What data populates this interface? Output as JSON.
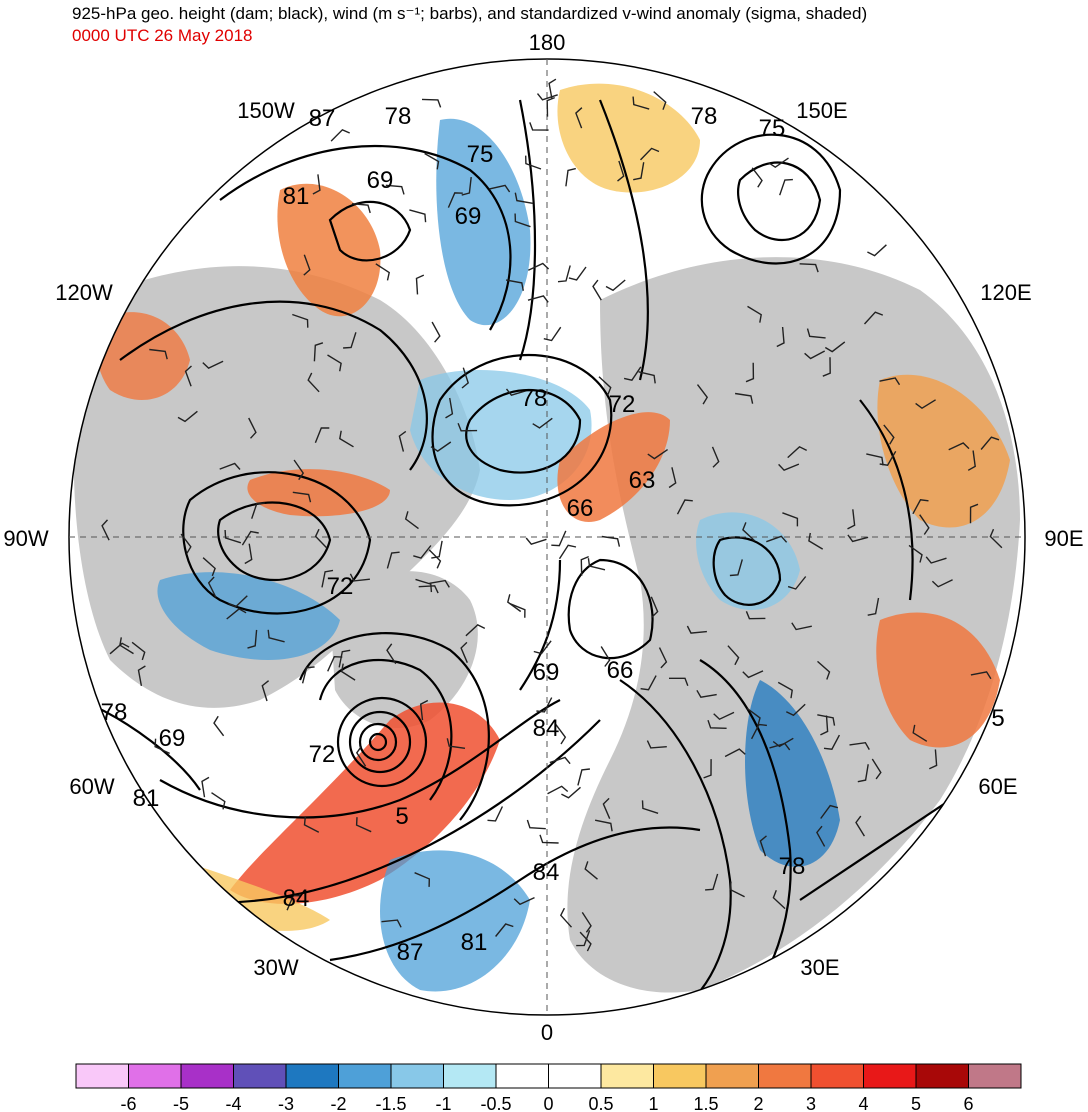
{
  "header": {
    "title": "925-hPa geo. height (dam; black), wind (m s⁻¹; barbs), and standardized v-wind anomaly (sigma, shaded)",
    "subtitle": "0000 UTC 26 May 2018"
  },
  "map": {
    "projection": "north polar stereographic",
    "longitude_labels": [
      {
        "text": "180",
        "pos": "top"
      },
      {
        "text": "150E",
        "pos": "top-right"
      },
      {
        "text": "120E",
        "pos": "right-upper"
      },
      {
        "text": "90E",
        "pos": "right"
      },
      {
        "text": "60E",
        "pos": "right-lower"
      },
      {
        "text": "30E",
        "pos": "bottom-right"
      },
      {
        "text": "0",
        "pos": "bottom"
      },
      {
        "text": "30W",
        "pos": "bottom-left"
      },
      {
        "text": "60W",
        "pos": "left-lower"
      },
      {
        "text": "90W",
        "pos": "left"
      },
      {
        "text": "120W",
        "pos": "left-upper"
      },
      {
        "text": "150W",
        "pos": "top-left"
      }
    ],
    "contour_labels": [
      "87",
      "78",
      "81",
      "69",
      "75",
      "69",
      "78",
      "75",
      "78",
      "72",
      "63",
      "66",
      "72",
      "69",
      "66",
      "84",
      "78",
      "69",
      "81",
      "72",
      "5",
      "84",
      "84",
      "87",
      "81",
      "78",
      "5"
    ],
    "colors": {
      "land": "#c8c8c8",
      "contour": "#000000",
      "anomaly_positive": "#f08040",
      "anomaly_negative": "#4a90d0"
    }
  },
  "colorbar": {
    "colors": [
      "#f9c8f9",
      "#e070e8",
      "#a830c8",
      "#6050b8",
      "#1e78c0",
      "#4ea0d8",
      "#88c8e8",
      "#b4e8f4",
      "#ffffff",
      "#ffffff",
      "#fde8a0",
      "#f8c860",
      "#f0a050",
      "#f07840",
      "#f05030",
      "#e81818",
      "#a80808",
      "#c07888"
    ],
    "labels": [
      "-6",
      "-5",
      "-4",
      "-3",
      "-2",
      "-1.5",
      "-1",
      "-0.5",
      "0",
      "0.5",
      "1",
      "1.5",
      "2",
      "3",
      "4",
      "5",
      "6"
    ]
  }
}
